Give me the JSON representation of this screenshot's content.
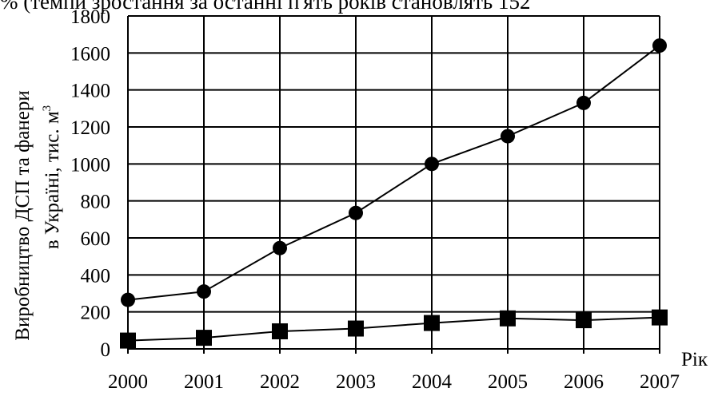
{
  "header_text": "% (темпи зростання за останні п'ять років становлять 152",
  "chart_data": {
    "type": "line",
    "x": [
      2000,
      2001,
      2002,
      2003,
      2004,
      2005,
      2006,
      2007
    ],
    "xlabel": "Рік",
    "ylabel_line1": "Виробництво ДСП та фанери",
    "ylabel_line2": "в Україні, тис. м",
    "ylabel_sup": "3",
    "ylim": [
      0,
      1800
    ],
    "yticks": [
      0,
      200,
      400,
      600,
      800,
      1000,
      1200,
      1400,
      1600,
      1800
    ],
    "grid": true,
    "series": [
      {
        "marker": "circle",
        "values": [
          265,
          310,
          545,
          735,
          1000,
          1150,
          1330,
          1640
        ]
      },
      {
        "marker": "square",
        "values": [
          45,
          60,
          95,
          110,
          140,
          165,
          155,
          170
        ]
      }
    ]
  }
}
